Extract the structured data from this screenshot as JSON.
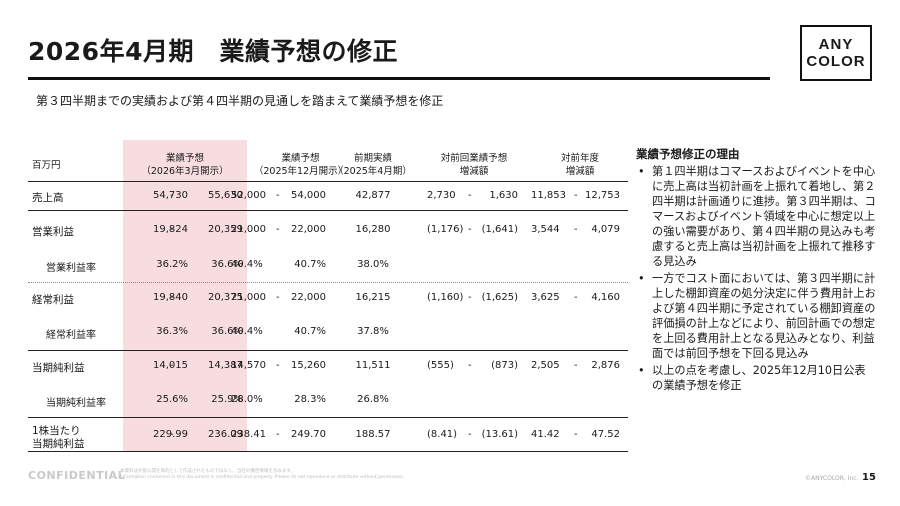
{
  "header": {
    "title": "2026年4月期　業績予想の修正",
    "subtitle": "第３四半期までの実績および第４四半期の見通しを踏まえて業績予想を修正",
    "logo_line1": "ANY",
    "logo_line2": "COLOR"
  },
  "table": {
    "unit_label": "百万円",
    "columns": [
      {
        "line1": "業績予想",
        "line2": "（2026年3月開示）"
      },
      {
        "line1": "業績予想",
        "line2": "（2025年12月開示）"
      },
      {
        "line1": "前期実績",
        "line2": "（2025年4月期）"
      },
      {
        "line1": "対前回業績予想",
        "line2": "増減額"
      },
      {
        "line1": "対前年度",
        "line2": "増減額"
      }
    ],
    "rows": [
      {
        "label": "売上高",
        "c1a": "54,730",
        "c1b": "55,630",
        "c2a": "52,000",
        "c2b": "54,000",
        "c3": "42,877",
        "c4a": "2,730",
        "c4b": "1,630",
        "c5a": "11,853",
        "c5b": "12,753"
      },
      {
        "label": "営業利益",
        "c1a": "19,824",
        "c1b": "20,359",
        "c2a": "21,000",
        "c2b": "22,000",
        "c3": "16,280",
        "c4a": "(1,176)",
        "c4b": "(1,641)",
        "c5a": "3,544",
        "c5b": "4,079"
      },
      {
        "label": "営業利益率",
        "c1a": "36.2%",
        "c1b": "36.6%",
        "c2a": "40.4%",
        "c2b": "40.7%",
        "c3": "38.0%"
      },
      {
        "label": "経常利益",
        "c1a": "19,840",
        "c1b": "20,375",
        "c2a": "21,000",
        "c2b": "22,000",
        "c3": "16,215",
        "c4a": "(1,160)",
        "c4b": "(1,625)",
        "c5a": "3,625",
        "c5b": "4,160"
      },
      {
        "label": "経常利益率",
        "c1a": "36.3%",
        "c1b": "36.6%",
        "c2a": "40.4%",
        "c2b": "40.7%",
        "c3": "37.8%"
      },
      {
        "label": "当期純利益",
        "c1a": "14,015",
        "c1b": "14,387",
        "c2a": "14,570",
        "c2b": "15,260",
        "c3": "11,511",
        "c4a": "(555)",
        "c4b": "(873)",
        "c5a": "2,505",
        "c5b": "2,876"
      },
      {
        "label": "当期純利益率",
        "c1a": "25.6%",
        "c1b": "25.9%",
        "c2a": "28.0%",
        "c2b": "28.3%",
        "c3": "26.8%"
      },
      {
        "label_line1": "1株当たり",
        "label_line2": "当期純利益",
        "c1a": "229.99",
        "c1b": "236.09",
        "c2a": "238.41",
        "c2b": "249.70",
        "c3": "188.57",
        "c4a": "(8.41)",
        "c4b": "(13.61)",
        "c5a": "41.42",
        "c5b": "47.52"
      }
    ],
    "dash": "-"
  },
  "reasons": {
    "title": "業績予想修正の理由",
    "bullets": [
      "第１四半期はコマースおよびイベントを中心に売上高は当初計画を上振れて着地し、第２四半期は計画通りに進捗。第３四半期は、コマースおよびイベント領域を中心に想定以上の強い需要があり、第４四半期の見込みも考慮すると売上高は当初計画を上振れて推移する見込み",
      "一方でコスト面においては、第３四半期に計上した棚卸資産の処分決定に伴う費用計上および第４四半期に予定されている棚卸資産の評価損の計上などにより、前回計画での想定を上回る費用計上となる見込みとなり、利益面では前回予想を下回る見込み",
      "以上の点を考慮し、2025年12月10日公表の業績予想を修正"
    ]
  },
  "footer": {
    "confidential": "CONFIDENTIAL",
    "note_line1": "本資料は外部公開を目的として作成されたものではなく、当社の機密情報を含みます。",
    "note_line2": "Information contained in this document is confidential and property. Please do not reproduce or distribute without permission.",
    "copyright": "©ANYCOLOR, Inc.",
    "page_number": "15"
  }
}
